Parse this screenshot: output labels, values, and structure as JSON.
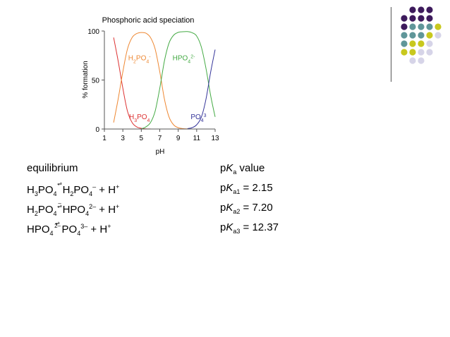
{
  "chart_data": {
    "type": "line",
    "title": "Phosphoric acid speciation",
    "xlabel": "pH",
    "ylabel": "% formation",
    "xlim": [
      1,
      13
    ],
    "ylim": [
      0,
      100
    ],
    "xticks": [
      "1",
      "3",
      "5",
      "7",
      "9",
      "11",
      "13"
    ],
    "yticks": [
      "0",
      "50",
      "100"
    ],
    "grid": false,
    "pKa": [
      2.15,
      7.2,
      12.37
    ],
    "series": [
      {
        "name": "H3PO4",
        "color": "#dd3333",
        "x": [
          2,
          2.5,
          3,
          3.5,
          4,
          4.5,
          5,
          5.5,
          6
        ],
        "y": [
          93.4,
          69.1,
          41.5,
          18.3,
          6.6,
          2.2,
          0.7,
          0.2,
          0.1
        ]
      },
      {
        "name": "H2PO4-",
        "color": "#ee8833",
        "x": [
          2,
          2.5,
          3,
          3.5,
          4,
          4.5,
          5,
          5.5,
          6,
          6.5,
          7,
          7.5,
          8,
          8.5,
          9,
          9.5,
          10
        ],
        "y": [
          6.6,
          30.9,
          58.5,
          81.6,
          93.3,
          97.4,
          98.5,
          97.8,
          93.3,
          81.6,
          58.5,
          30.9,
          12.4,
          4.3,
          1.4,
          0.4,
          0.1
        ]
      },
      {
        "name": "HPO42-",
        "color": "#44aa44",
        "x": [
          5,
          5.5,
          6,
          6.5,
          7,
          7.5,
          8,
          8.5,
          9,
          9.5,
          10,
          10.5,
          11,
          11.5,
          12,
          12.5,
          13
        ],
        "y": [
          0.2,
          2.2,
          6.6,
          18.3,
          41.5,
          69.1,
          87.6,
          95.7,
          98.6,
          99.3,
          99.4,
          98.3,
          94.9,
          83.8,
          62.4,
          34.8,
          12.4
        ]
      },
      {
        "name": "PO43-",
        "color": "#333399",
        "x": [
          10,
          10.5,
          11,
          11.5,
          12,
          12.5,
          13
        ],
        "y": [
          0.4,
          1.4,
          4.3,
          12.0,
          30.0,
          57.4,
          81.0
        ]
      }
    ],
    "labels": [
      {
        "main": "H",
        "s1": "2",
        "m2": "PO",
        "s2": "4",
        "sup": "-",
        "color": "#ee8833",
        "x": 4.8,
        "y": 70
      },
      {
        "main": "HPO",
        "s1": "4",
        "sup": "2-",
        "color": "#44aa44",
        "x": 9.6,
        "y": 70
      },
      {
        "main": "H",
        "s1": "3",
        "m2": "PO",
        "s2": "4",
        "sup": "",
        "color": "#dd3333",
        "x": 4.8,
        "y": 10
      },
      {
        "main": "PO",
        "s1": "4",
        "sup": "3",
        "color": "#333399",
        "x": 11.2,
        "y": 10
      }
    ]
  },
  "table": {
    "header_left": "equilibrium",
    "header_right": {
      "p": "p",
      "k": "K",
      "sub": "a",
      "rest": " value"
    },
    "rows": [
      {
        "r1": "H",
        "r1s": "3",
        "r2": "PO",
        "r2s": "4",
        "p1": "H",
        "p1s": "2",
        "p2": "PO",
        "p2s": "4",
        "p2c": "–",
        "tail": " + H",
        "tailc": "+",
        "pk": "p",
        "k": "K",
        "ksub": "a1",
        "val": " = 2.15"
      },
      {
        "r1": "H",
        "r1s": "2",
        "r2": "PO",
        "r2s": "4",
        "r2c": "–",
        "p1": "HPO",
        "p1s": "4",
        "p2c": "2–",
        "tail": " + H",
        "tailc": "+",
        "pk": "p",
        "k": "K",
        "ksub": "a2",
        "val": " = 7.20"
      },
      {
        "r1": "HPO",
        "r1s": "4",
        "r2c": "2–",
        "p1": "PO",
        "p1s": "4",
        "p2c": "3–",
        "tail": " + H",
        "tailc": "+",
        "pk": "p",
        "k": "K",
        "ksub": "a3",
        "val": " = 12.37"
      }
    ],
    "equilibrium_arrow": "⇌"
  },
  "decoration": {
    "dot_colors": {
      "purple": "#3d1a5c",
      "teal": "#5f9699",
      "lime": "#c8c81e",
      "lavender": "#d6d4e8"
    }
  }
}
